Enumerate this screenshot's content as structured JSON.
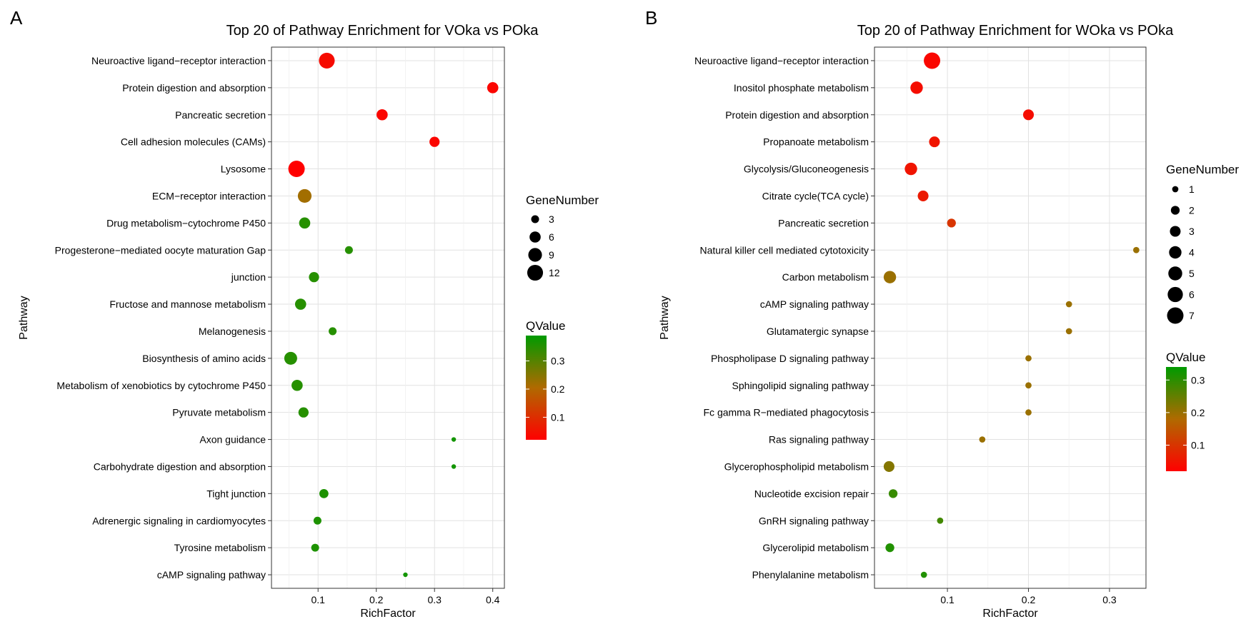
{
  "chart_data": [
    {
      "type": "scatter",
      "panel_label": "A",
      "title": "Top 20 of Pathway Enrichment for VOka vs POka",
      "xlabel": "RichFactor",
      "ylabel": "Pathway",
      "xlim": [
        0.02,
        0.42
      ],
      "xticks": [
        0.1,
        0.2,
        0.3,
        0.4
      ],
      "xtick_labels": [
        "0.1",
        "0.2",
        "0.3",
        "0.4"
      ],
      "categories": [
        "Neuroactive ligand−receptor interaction",
        "Protein digestion and absorption",
        "Pancreatic secretion",
        "Cell adhesion molecules (CAMs)",
        "Lysosome",
        "ECM−receptor interaction",
        "Drug metabolism−cytochrome P450",
        "Progesterone−mediated oocyte maturation Gap",
        "junction",
        "Fructose and mannose metabolism",
        "Melanogenesis",
        "Biosynthesis of amino acids",
        "Metabolism of xenobiotics by cytochrome P450",
        "Pyruvate metabolism",
        "Axon guidance",
        "Carbohydrate digestion and absorption",
        "Tight junction",
        "Adrenergic signaling in cardiomyocytes",
        "Tyrosine metabolism",
        "cAMP signaling pathway"
      ],
      "rich_factor": [
        0.115,
        0.4,
        0.21,
        0.3,
        0.063,
        0.077,
        0.077,
        0.153,
        0.093,
        0.07,
        0.125,
        0.053,
        0.064,
        0.075,
        0.333,
        0.333,
        0.11,
        0.099,
        0.095,
        0.25
      ],
      "gene_number": [
        12,
        6,
        6,
        5,
        13,
        9,
        6,
        3,
        5,
        6,
        3,
        8,
        6,
        5,
        1,
        1,
        4,
        3,
        3,
        1
      ],
      "q_value": [
        0.04,
        0.03,
        0.03,
        0.03,
        0.02,
        0.22,
        0.35,
        0.35,
        0.35,
        0.35,
        0.35,
        0.35,
        0.35,
        0.35,
        0.37,
        0.37,
        0.36,
        0.36,
        0.36,
        0.37
      ],
      "size_legend": {
        "title": "GeneNumber",
        "values": [
          3,
          6,
          9,
          12
        ],
        "labels": [
          "3",
          "6",
          "9",
          "12"
        ],
        "max_value": 13
      },
      "color_legend": {
        "title": "QValue",
        "low_color": "#ff0000",
        "mid_color": "#b06a00",
        "high_color": "#009a00",
        "range": [
          0.02,
          0.39
        ],
        "ticks": [
          0.1,
          0.2,
          0.3
        ],
        "tick_labels": [
          "0.1",
          "0.2",
          "0.3"
        ]
      }
    },
    {
      "type": "scatter",
      "panel_label": "B",
      "title": "Top 20 of Pathway Enrichment for WOka vs POka",
      "xlabel": "RichFactor",
      "ylabel": "Pathway",
      "xlim": [
        0.01,
        0.345
      ],
      "xticks": [
        0.1,
        0.2,
        0.3
      ],
      "xtick_labels": [
        "0.1",
        "0.2",
        "0.3"
      ],
      "categories": [
        "Neuroactive ligand−receptor interaction",
        "Inositol phosphate metabolism",
        "Protein digestion and absorption",
        "Propanoate metabolism",
        "Glycolysis/Gluconeogenesis",
        "Citrate cycle(TCA cycle)",
        "Pancreatic secretion",
        "Natural killer cell mediated cytotoxicity",
        "Carbon metabolism",
        "cAMP signaling pathway",
        "Glutamatergic synapse",
        "Phospholipase D signaling pathway",
        "Sphingolipid signaling pathway",
        "Fc gamma R−mediated phagocytosis",
        "Ras signaling pathway",
        "Glycerophospholipid metabolism",
        "Nucleotide excision repair",
        "GnRH signaling pathway",
        "Glycerolipid metabolism",
        "Phenylalanine metabolism"
      ],
      "rich_factor": [
        0.081,
        0.062,
        0.2,
        0.084,
        0.055,
        0.07,
        0.105,
        0.333,
        0.029,
        0.25,
        0.25,
        0.2,
        0.2,
        0.2,
        0.143,
        0.028,
        0.033,
        0.091,
        0.029,
        0.071
      ],
      "gene_number": [
        7,
        4,
        3,
        3,
        4,
        3,
        2,
        1,
        4,
        1,
        1,
        1,
        1,
        1,
        1,
        3,
        2,
        1,
        2,
        1
      ],
      "q_value": [
        0.03,
        0.04,
        0.04,
        0.05,
        0.05,
        0.06,
        0.1,
        0.2,
        0.2,
        0.2,
        0.2,
        0.2,
        0.2,
        0.2,
        0.2,
        0.22,
        0.29,
        0.28,
        0.31,
        0.31
      ],
      "size_legend": {
        "title": "GeneNumber",
        "values": [
          1,
          2,
          3,
          4,
          5,
          6,
          7
        ],
        "labels": [
          "1",
          "2",
          "3",
          "4",
          "5",
          "6",
          "7"
        ],
        "max_value": 7
      },
      "color_legend": {
        "title": "QValue",
        "low_color": "#ff0000",
        "mid_color": "#b06a00",
        "high_color": "#009a00",
        "range": [
          0.02,
          0.34
        ],
        "ticks": [
          0.1,
          0.2,
          0.3
        ],
        "tick_labels": [
          "0.1",
          "0.2",
          "0.3"
        ]
      }
    }
  ]
}
